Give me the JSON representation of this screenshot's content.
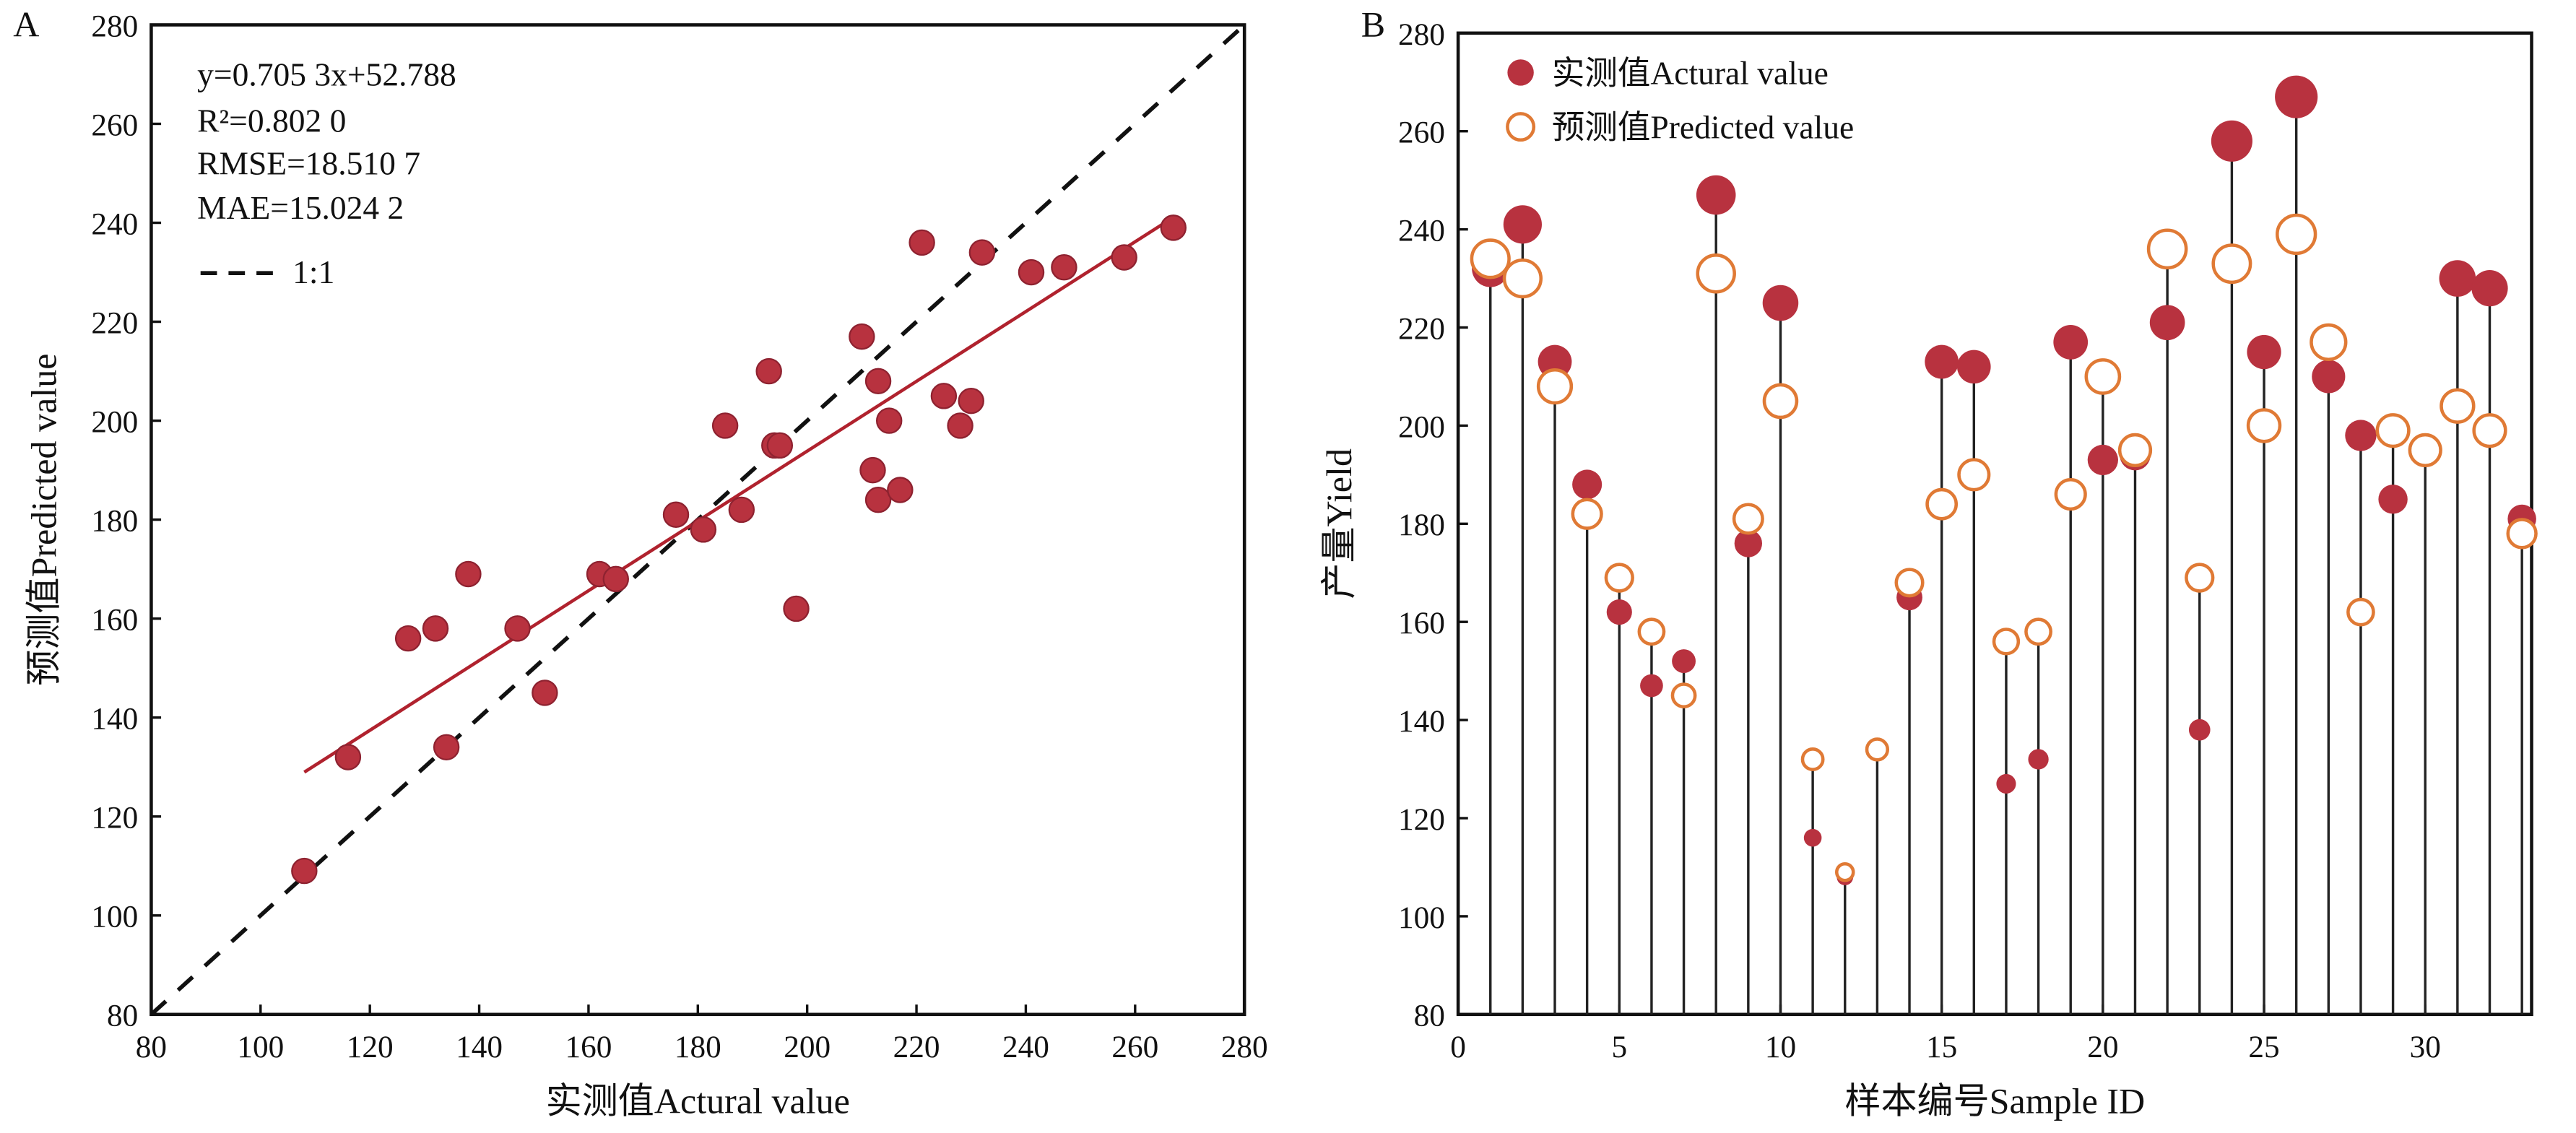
{
  "colors": {
    "actual": "#b8323f",
    "predicted": "#e07a35",
    "fit": "#b0222e",
    "ref": "#111111"
  },
  "chart_data": [
    {
      "panel": "A",
      "type": "scatter",
      "xlabel": "实测值Actural value",
      "ylabel": "预测值Predicted value",
      "xlim": [
        80,
        280
      ],
      "ylim": [
        80,
        280
      ],
      "xticks": [
        80,
        100,
        120,
        140,
        160,
        180,
        200,
        220,
        240,
        260,
        280
      ],
      "yticks": [
        80,
        100,
        120,
        140,
        160,
        180,
        200,
        220,
        240,
        260,
        280
      ],
      "annotations": [
        "y=0.705 3x+52.788",
        "R²=0.802 0",
        "RMSE=18.510 7",
        "MAE=15.024 2"
      ],
      "legend": [
        {
          "label": "1:1",
          "style": "dashed"
        }
      ],
      "fit": {
        "slope": 0.7053,
        "intercept": 52.788,
        "xrange": [
          108,
          267
        ]
      },
      "points": [
        [
          108,
          109
        ],
        [
          116,
          132
        ],
        [
          127,
          156
        ],
        [
          132,
          158
        ],
        [
          134,
          134
        ],
        [
          138,
          169
        ],
        [
          147,
          158
        ],
        [
          152,
          145
        ],
        [
          162,
          169
        ],
        [
          165,
          168
        ],
        [
          176,
          181
        ],
        [
          181,
          178
        ],
        [
          185,
          199
        ],
        [
          188,
          182
        ],
        [
          193,
          210
        ],
        [
          194,
          195
        ],
        [
          195,
          195
        ],
        [
          198,
          162
        ],
        [
          210,
          217
        ],
        [
          212,
          190
        ],
        [
          213,
          208
        ],
        [
          213,
          184
        ],
        [
          215,
          200
        ],
        [
          217,
          186
        ],
        [
          221,
          236
        ],
        [
          225,
          205
        ],
        [
          228,
          199
        ],
        [
          230,
          204
        ],
        [
          232,
          234
        ],
        [
          241,
          230
        ],
        [
          247,
          231
        ],
        [
          258,
          233
        ],
        [
          267,
          239
        ]
      ]
    },
    {
      "panel": "B",
      "type": "scatter",
      "xlabel": "样本编号Sample ID",
      "ylabel": "产量Yield",
      "xlim": [
        0,
        33.3
      ],
      "ylim": [
        80,
        280
      ],
      "xticks": [
        0,
        5,
        10,
        15,
        20,
        25,
        30
      ],
      "yticks": [
        80,
        100,
        120,
        140,
        160,
        180,
        200,
        220,
        240,
        260,
        280
      ],
      "legend": [
        {
          "label": "实测值Actural value"
        },
        {
          "label": "预测值Predicted value"
        }
      ],
      "x": [
        1,
        2,
        3,
        4,
        5,
        6,
        7,
        8,
        9,
        10,
        11,
        12,
        13,
        14,
        15,
        16,
        17,
        18,
        19,
        20,
        21,
        22,
        23,
        24,
        25,
        26,
        27,
        28,
        29,
        30,
        31,
        32,
        33
      ],
      "series": [
        {
          "name": "实测值Actural value",
          "values": [
            232,
            241,
            213,
            188,
            162,
            147,
            152,
            247,
            176,
            225,
            116,
            108,
            134,
            165,
            213,
            212,
            127,
            132,
            217,
            193,
            194,
            221,
            138,
            258,
            215,
            267,
            210,
            198,
            185,
            195,
            230,
            228,
            181
          ]
        },
        {
          "name": "预测值Predicted value",
          "values": [
            234,
            230,
            208,
            182,
            169,
            158,
            145,
            231,
            181,
            205,
            132,
            109,
            134,
            168,
            184,
            190,
            156,
            158,
            186,
            210,
            195,
            236,
            169,
            233,
            200,
            239,
            217,
            162,
            199,
            195,
            204,
            199,
            178
          ]
        }
      ]
    }
  ]
}
